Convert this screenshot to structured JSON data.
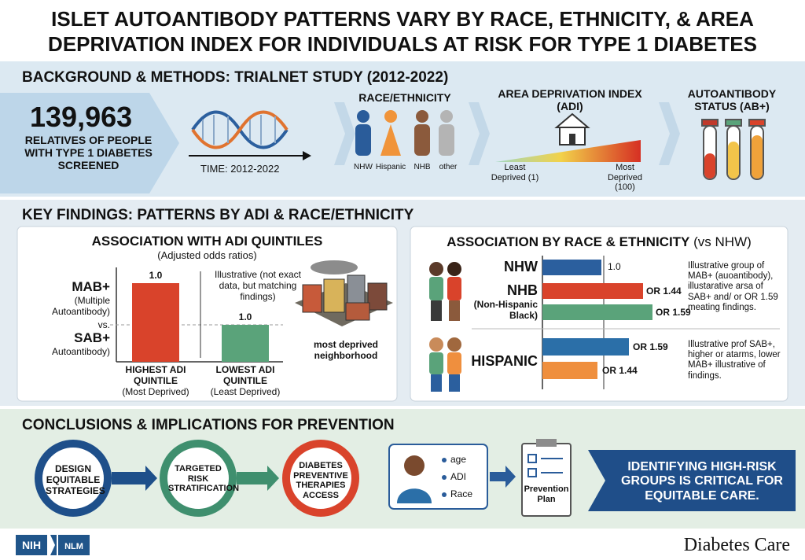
{
  "header": {
    "title": "ISLET AUTOANTIBODY PATTERNS VARY BY RACE, ETHNICITY, & AREA DEPRIVATION INDEX FOR INDIVIDUALS AT RISK FOR TYPE 1 DIABETES"
  },
  "background": {
    "heading": "BACKGROUND & METHODS: TRIALNET STUDY (2012-2022)",
    "count": "139,963",
    "count_caption": "RELATIVES OF PEOPLE WITH TYPE 1 DIABETES SCREENED",
    "time": "TIME: 2012-2022",
    "race_heading": "RACE/ETHNICITY",
    "race_groups": [
      "NHW",
      "Hispanic",
      "NHB",
      "other"
    ],
    "adi_heading": "AREA DEPRIVATION INDEX (ADI)",
    "adi_low": "Least Deprived (1)",
    "adi_high": "Most Deprived (100)",
    "ab_heading": "AUTOANTIBODY STATUS (AB+)"
  },
  "findings": {
    "heading": "KEY FINDINGS: PATTERNS BY ADI & RACE/ETHNICITY",
    "adi_panel": {
      "title": "ASSOCIATION WITH ADI QUINTILES",
      "subtitle": "(Adjusted odds ratios)",
      "mab": "MAB+",
      "mab_note": "(Multiple Autoantibody)",
      "vs": "vs.",
      "sab": "SAB+",
      "sab_note": "Autoantibody)",
      "note": "Illustrative (not exact data, but matching findings)",
      "bars": [
        {
          "label": "1.0",
          "category": "HIGHEST ADI QUINTILE",
          "sub": "(Most Deprived)"
        },
        {
          "label": "1.0",
          "category": "LOWEST ADI QUINTILE",
          "sub": "(Least Deprived)"
        }
      ],
      "image_caption": "most deprived neighborhood"
    },
    "race_panel": {
      "title": "ASSOCIATION BY RACE & ETHNICITY",
      "title_note": "(vs NHW)",
      "nhw": {
        "name": "NHW",
        "label": "1.0"
      },
      "nhb": {
        "name": "NHB",
        "sub": "(Non-Hispanic Black)",
        "labels": [
          "OR 1.44",
          "OR 1.59"
        ],
        "note": "Illustrative group of MAB+ (auoantibody), illustarative arsa of SAB+ and/ or OR 1.59 meating findings."
      },
      "hispanic": {
        "name": "HISPANIC",
        "labels": [
          "OR 1.59",
          "OR 1.44"
        ],
        "note": "Illustrative prof SAB+, higher or atarms, lower MAB+ illustrative of findings."
      }
    }
  },
  "conclusions": {
    "heading": "CONCLUSIONS & IMPLICATIONS FOR PREVENTION",
    "steps": [
      "DESIGN EQUITABLE STRATEGIES",
      "TARGETED RISK STRATIFICATION",
      "DIABETES PREVENTIVE THERAPIES ACCESS"
    ],
    "factors": [
      "age",
      "ADI",
      "Race"
    ],
    "plan": "Prevention Plan",
    "banner": "IDENTIFYING HIGH-RISK GROUPS IS CRITICAL FOR EQUITABLE CARE."
  },
  "footer": {
    "logos": [
      "NIH",
      "NLM"
    ],
    "journal": "Diabetes Care"
  }
}
